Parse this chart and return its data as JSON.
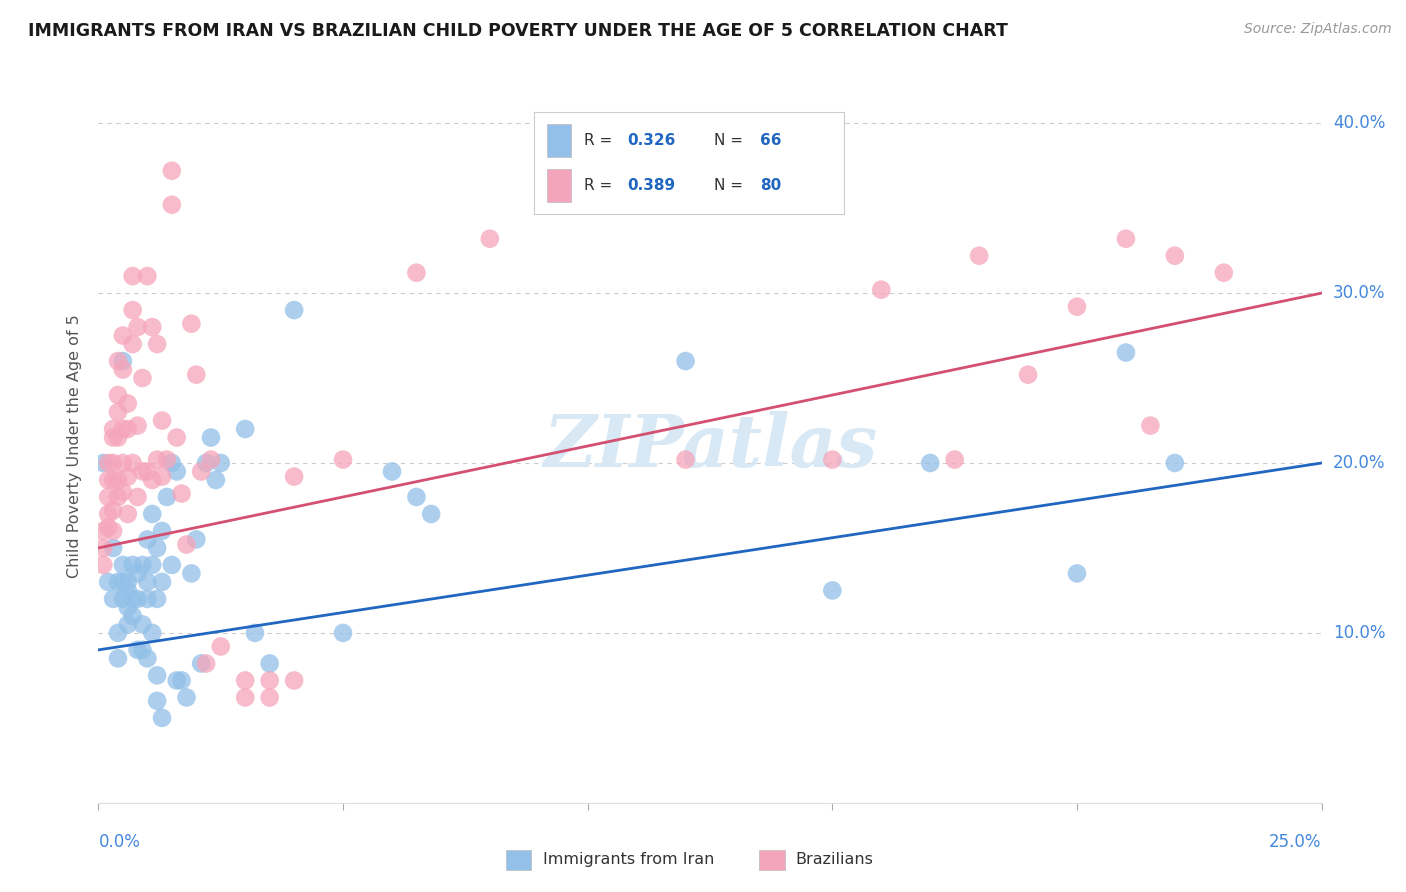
{
  "title": "IMMIGRANTS FROM IRAN VS BRAZILIAN CHILD POVERTY UNDER THE AGE OF 5 CORRELATION CHART",
  "source": "Source: ZipAtlas.com",
  "ylabel": "Child Poverty Under the Age of 5",
  "xmin": 0.0,
  "xmax": 0.25,
  "ymin": 0.0,
  "ymax": 0.42,
  "blue_R": 0.326,
  "blue_N": 66,
  "pink_R": 0.389,
  "pink_N": 80,
  "blue_color": "#92C0E8",
  "pink_color": "#F5A5BB",
  "blue_line_color": "#2166C0",
  "pink_line_color": "#D45070",
  "legend_label_blue": "Immigrants from Iran",
  "legend_label_pink": "Brazilians",
  "blue_points": [
    [
      0.001,
      0.2
    ],
    [
      0.002,
      0.13
    ],
    [
      0.003,
      0.12
    ],
    [
      0.003,
      0.15
    ],
    [
      0.004,
      0.13
    ],
    [
      0.004,
      0.1
    ],
    [
      0.004,
      0.085
    ],
    [
      0.005,
      0.26
    ],
    [
      0.005,
      0.14
    ],
    [
      0.005,
      0.13
    ],
    [
      0.005,
      0.12
    ],
    [
      0.006,
      0.125
    ],
    [
      0.006,
      0.13
    ],
    [
      0.006,
      0.115
    ],
    [
      0.006,
      0.105
    ],
    [
      0.007,
      0.14
    ],
    [
      0.007,
      0.12
    ],
    [
      0.007,
      0.11
    ],
    [
      0.008,
      0.135
    ],
    [
      0.008,
      0.12
    ],
    [
      0.008,
      0.09
    ],
    [
      0.009,
      0.14
    ],
    [
      0.009,
      0.105
    ],
    [
      0.009,
      0.09
    ],
    [
      0.01,
      0.155
    ],
    [
      0.01,
      0.13
    ],
    [
      0.01,
      0.12
    ],
    [
      0.01,
      0.085
    ],
    [
      0.011,
      0.17
    ],
    [
      0.011,
      0.14
    ],
    [
      0.011,
      0.1
    ],
    [
      0.012,
      0.15
    ],
    [
      0.012,
      0.12
    ],
    [
      0.012,
      0.075
    ],
    [
      0.012,
      0.06
    ],
    [
      0.013,
      0.16
    ],
    [
      0.013,
      0.13
    ],
    [
      0.013,
      0.05
    ],
    [
      0.014,
      0.18
    ],
    [
      0.015,
      0.2
    ],
    [
      0.015,
      0.14
    ],
    [
      0.016,
      0.195
    ],
    [
      0.016,
      0.072
    ],
    [
      0.017,
      0.072
    ],
    [
      0.018,
      0.062
    ],
    [
      0.019,
      0.135
    ],
    [
      0.02,
      0.155
    ],
    [
      0.021,
      0.082
    ],
    [
      0.022,
      0.2
    ],
    [
      0.023,
      0.215
    ],
    [
      0.024,
      0.19
    ],
    [
      0.025,
      0.2
    ],
    [
      0.03,
      0.22
    ],
    [
      0.032,
      0.1
    ],
    [
      0.035,
      0.082
    ],
    [
      0.04,
      0.29
    ],
    [
      0.05,
      0.1
    ],
    [
      0.06,
      0.195
    ],
    [
      0.065,
      0.18
    ],
    [
      0.068,
      0.17
    ],
    [
      0.12,
      0.26
    ],
    [
      0.15,
      0.125
    ],
    [
      0.17,
      0.2
    ],
    [
      0.2,
      0.135
    ],
    [
      0.21,
      0.265
    ],
    [
      0.22,
      0.2
    ]
  ],
  "pink_points": [
    [
      0.001,
      0.16
    ],
    [
      0.001,
      0.15
    ],
    [
      0.001,
      0.14
    ],
    [
      0.002,
      0.2
    ],
    [
      0.002,
      0.19
    ],
    [
      0.002,
      0.18
    ],
    [
      0.002,
      0.17
    ],
    [
      0.002,
      0.162
    ],
    [
      0.003,
      0.22
    ],
    [
      0.003,
      0.215
    ],
    [
      0.003,
      0.2
    ],
    [
      0.003,
      0.19
    ],
    [
      0.003,
      0.172
    ],
    [
      0.003,
      0.16
    ],
    [
      0.004,
      0.26
    ],
    [
      0.004,
      0.24
    ],
    [
      0.004,
      0.23
    ],
    [
      0.004,
      0.215
    ],
    [
      0.004,
      0.19
    ],
    [
      0.004,
      0.18
    ],
    [
      0.005,
      0.275
    ],
    [
      0.005,
      0.255
    ],
    [
      0.005,
      0.22
    ],
    [
      0.005,
      0.2
    ],
    [
      0.005,
      0.183
    ],
    [
      0.006,
      0.235
    ],
    [
      0.006,
      0.22
    ],
    [
      0.006,
      0.192
    ],
    [
      0.006,
      0.17
    ],
    [
      0.007,
      0.31
    ],
    [
      0.007,
      0.29
    ],
    [
      0.007,
      0.27
    ],
    [
      0.007,
      0.2
    ],
    [
      0.008,
      0.28
    ],
    [
      0.008,
      0.222
    ],
    [
      0.008,
      0.18
    ],
    [
      0.009,
      0.25
    ],
    [
      0.009,
      0.195
    ],
    [
      0.01,
      0.31
    ],
    [
      0.01,
      0.195
    ],
    [
      0.011,
      0.28
    ],
    [
      0.011,
      0.19
    ],
    [
      0.012,
      0.27
    ],
    [
      0.012,
      0.202
    ],
    [
      0.013,
      0.225
    ],
    [
      0.013,
      0.192
    ],
    [
      0.014,
      0.202
    ],
    [
      0.015,
      0.372
    ],
    [
      0.015,
      0.352
    ],
    [
      0.016,
      0.215
    ],
    [
      0.017,
      0.182
    ],
    [
      0.018,
      0.152
    ],
    [
      0.019,
      0.282
    ],
    [
      0.02,
      0.252
    ],
    [
      0.021,
      0.195
    ],
    [
      0.022,
      0.082
    ],
    [
      0.023,
      0.202
    ],
    [
      0.025,
      0.092
    ],
    [
      0.03,
      0.072
    ],
    [
      0.03,
      0.062
    ],
    [
      0.035,
      0.072
    ],
    [
      0.035,
      0.062
    ],
    [
      0.04,
      0.192
    ],
    [
      0.04,
      0.072
    ],
    [
      0.05,
      0.202
    ],
    [
      0.065,
      0.312
    ],
    [
      0.08,
      0.332
    ],
    [
      0.1,
      0.352
    ],
    [
      0.12,
      0.202
    ],
    [
      0.13,
      0.352
    ],
    [
      0.15,
      0.202
    ],
    [
      0.16,
      0.302
    ],
    [
      0.175,
      0.202
    ],
    [
      0.18,
      0.322
    ],
    [
      0.19,
      0.252
    ],
    [
      0.2,
      0.292
    ],
    [
      0.21,
      0.332
    ],
    [
      0.215,
      0.222
    ],
    [
      0.22,
      0.322
    ],
    [
      0.23,
      0.312
    ]
  ],
  "blue_trend_x": [
    0.0,
    0.25
  ],
  "blue_trend_y": [
    0.09,
    0.2
  ],
  "pink_trend_x": [
    0.0,
    0.25
  ],
  "pink_trend_y": [
    0.15,
    0.3
  ],
  "yticks": [
    0.1,
    0.2,
    0.3,
    0.4
  ],
  "ytick_labels": [
    "10.0%",
    "20.0%",
    "30.0%",
    "40.0%"
  ],
  "grid_color": "#CCCCCC",
  "watermark_color": "#D8E8F5",
  "background_color": "#FFFFFF"
}
